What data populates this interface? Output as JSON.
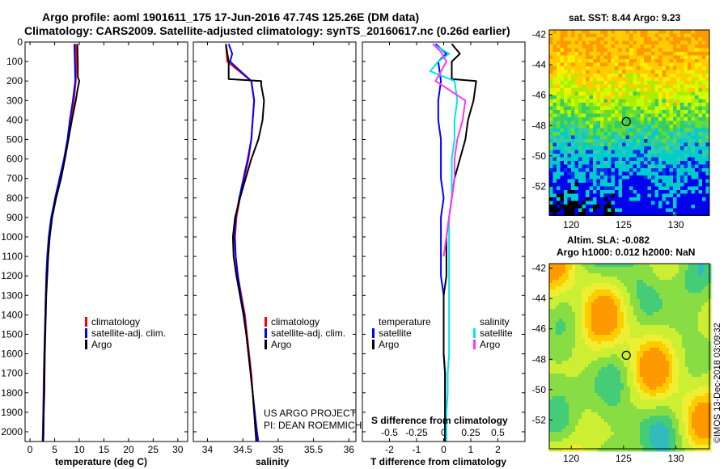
{
  "header": {
    "line1": "Argo profile: aoml 1901611_175 17-Jun-2016 47.74S 125.26E (DM data)",
    "line2": "Climatology: CARS2009. Satellite-adjusted climatology: synTS_20160617.nc (0.26d earlier)"
  },
  "colors": {
    "climatology": "#ff0000",
    "satellite": "#0000ff",
    "argo": "#000000",
    "satellite_salinity": "#00e5e5",
    "argo_salinity": "#ff33ff"
  },
  "depth_ticks": [
    "0",
    "100",
    "200",
    "300",
    "400",
    "500",
    "600",
    "700",
    "800",
    "900",
    "1000",
    "1100",
    "1200",
    "1300",
    "1400",
    "1500",
    "1600",
    "1700",
    "1800",
    "1900",
    "2000"
  ],
  "chart_data": [
    {
      "type": "line",
      "id": "temperature",
      "xlabel": "temperature (deg C)",
      "xlim": [
        -1,
        32
      ],
      "ylim": [
        2050,
        0
      ],
      "x_ticks": [
        "0",
        "5",
        "10",
        "15",
        "20",
        "25",
        "30"
      ],
      "legend": [
        "climatology",
        "satellite-adj. clim.",
        "Argo"
      ],
      "series": [
        {
          "name": "climatology",
          "color": "#ff0000",
          "depth": [
            10,
            100,
            200,
            300,
            400,
            500,
            600,
            700,
            800,
            900,
            1000,
            1100,
            1200,
            1300,
            1400,
            1500,
            1600,
            1700,
            1800,
            1900,
            2000,
            2050
          ],
          "values": [
            9.3,
            9.4,
            9.3,
            8.9,
            8.3,
            7.7,
            7.0,
            6.1,
            5.1,
            4.4,
            3.9,
            3.6,
            3.4,
            3.2,
            3.1,
            3.0,
            2.9,
            2.8,
            2.75,
            2.7,
            2.6,
            2.55
          ]
        },
        {
          "name": "satellite-adj. clim.",
          "color": "#0000ff",
          "depth": [
            10,
            100,
            200,
            300,
            400,
            500,
            600,
            700,
            800,
            900,
            1000,
            1100,
            1200,
            1300,
            1400,
            1500,
            1600,
            1700,
            1800,
            1900,
            2000,
            2050
          ],
          "values": [
            9.0,
            9.1,
            9.2,
            8.7,
            8.1,
            7.6,
            6.9,
            6.0,
            5.1,
            4.3,
            3.8,
            3.5,
            3.3,
            3.2,
            3.1,
            3.0,
            2.9,
            2.85,
            2.8,
            2.7,
            2.65,
            2.6
          ]
        },
        {
          "name": "Argo",
          "color": "#000000",
          "depth": [
            10,
            100,
            180,
            200,
            250,
            300,
            400,
            500,
            600,
            700,
            800,
            900,
            1000,
            1100,
            1200,
            1300,
            1400,
            1500,
            1600,
            1700,
            1800,
            1900,
            2000,
            2050
          ],
          "values": [
            9.6,
            9.7,
            9.7,
            10.0,
            9.6,
            9.3,
            8.5,
            7.8,
            7.1,
            6.3,
            5.3,
            4.5,
            4.0,
            3.7,
            3.5,
            3.3,
            3.2,
            3.1,
            3.0,
            2.95,
            2.9,
            2.8,
            2.75,
            2.7
          ]
        }
      ]
    },
    {
      "type": "line",
      "id": "salinity",
      "xlabel": "salinity",
      "xlim": [
        33.8,
        36.1
      ],
      "ylim": [
        2050,
        0
      ],
      "x_ticks": [
        "34",
        "34.5",
        "35",
        "35.5",
        "36"
      ],
      "legend": [
        "climatology",
        "satellite-adj. clim.",
        "Argo"
      ],
      "series": [
        {
          "name": "climatology",
          "color": "#ff0000",
          "depth": [
            10,
            100,
            200,
            300,
            400,
            500,
            600,
            700,
            800,
            900,
            1000,
            1100,
            1200,
            1300,
            1400,
            1500,
            1600,
            1700,
            1800,
            1900,
            2000,
            2050
          ],
          "values": [
            34.26,
            34.28,
            34.62,
            34.66,
            34.64,
            34.62,
            34.58,
            34.52,
            34.46,
            34.41,
            34.39,
            34.4,
            34.43,
            34.48,
            34.53,
            34.56,
            34.59,
            34.62,
            34.64,
            34.66,
            34.69,
            34.7
          ]
        },
        {
          "name": "satellite-adj. clim.",
          "color": "#0000ff",
          "depth": [
            10,
            60,
            100,
            200,
            300,
            400,
            500,
            600,
            700,
            800,
            900,
            1000,
            1100,
            1200,
            1300,
            1400,
            1500,
            1600,
            1700,
            1800,
            1900,
            2000,
            2050
          ],
          "values": [
            34.3,
            34.35,
            34.32,
            34.62,
            34.66,
            34.64,
            34.62,
            34.57,
            34.51,
            34.45,
            34.4,
            34.38,
            34.4,
            34.43,
            34.47,
            34.52,
            34.55,
            34.58,
            34.61,
            34.64,
            34.67,
            34.7,
            34.72
          ]
        },
        {
          "name": "Argo",
          "color": "#000000",
          "depth": [
            10,
            100,
            190,
            200,
            220,
            300,
            400,
            500,
            600,
            700,
            800,
            900,
            1000,
            1100,
            1200,
            1300,
            1400,
            1500,
            1600,
            1700,
            1800,
            1900,
            2000,
            2050
          ],
          "values": [
            34.26,
            34.3,
            34.3,
            34.76,
            34.76,
            34.8,
            34.78,
            34.72,
            34.62,
            34.54,
            34.46,
            34.39,
            34.36,
            34.37,
            34.41,
            34.46,
            34.51,
            34.55,
            34.58,
            34.61,
            34.64,
            34.66,
            34.68,
            34.69
          ]
        }
      ]
    },
    {
      "type": "line",
      "id": "difference",
      "xlabel": "T difference from climatology",
      "xlabel_top": "S difference from climatology",
      "xlim": [
        -3,
        3
      ],
      "ylim": [
        2050,
        0
      ],
      "x_ticks": [
        "-2",
        "-1",
        "0",
        "1",
        "2"
      ],
      "x_ticks_top": [
        "-0.5",
        "-0.25",
        "0",
        "0.25",
        "0.5"
      ],
      "legend_left_title": "temperature",
      "legend_right_title": "salinity",
      "legend_left": [
        "satellite",
        "Argo"
      ],
      "legend_right": [
        "satellite",
        "Argo"
      ],
      "series": [
        {
          "name": "satellite",
          "color": "#0000ff",
          "depth": [
            10,
            60,
            100,
            200,
            300,
            400,
            500,
            600,
            700,
            800,
            900,
            1000,
            1100,
            1200,
            1300,
            1400,
            1500,
            1600,
            1700,
            1800,
            1900,
            2000,
            2050
          ],
          "values": [
            -0.3,
            0.1,
            -0.2,
            -0.1,
            -0.2,
            -0.2,
            -0.1,
            -0.1,
            -0.1,
            0.0,
            -0.1,
            -0.1,
            -0.1,
            -0.1,
            0.0,
            0.0,
            0.0,
            0.0,
            0.05,
            0.05,
            0.05,
            0.05,
            0.05
          ]
        },
        {
          "name": "Argo",
          "color": "#000000",
          "depth": [
            10,
            60,
            100,
            190,
            200,
            300,
            400,
            500,
            600,
            700,
            800,
            900,
            1000,
            1100,
            1200,
            1300,
            1400,
            1500,
            1600,
            1700,
            1800,
            1900,
            2000,
            2050
          ],
          "values": [
            0.3,
            0.6,
            0.3,
            0.3,
            1.2,
            1.1,
            0.9,
            0.8,
            0.6,
            0.4,
            0.3,
            0.2,
            0.1,
            0.1,
            0.1,
            0.0,
            0.0,
            0.0,
            0.0,
            0.05,
            0.05,
            0.05,
            0.05,
            0.05
          ]
        },
        {
          "name": "satellite",
          "color": "#00e5e5",
          "depth": [
            10,
            60,
            100,
            150,
            200,
            300,
            400,
            500,
            600,
            700,
            800,
            900,
            1000,
            1100,
            1200,
            1300,
            1400,
            1500,
            1600,
            1700,
            1800,
            1900,
            2000,
            2050
          ],
          "values": [
            -0.4,
            0.2,
            -0.2,
            -0.5,
            0.4,
            0.5,
            0.4,
            0.4,
            0.3,
            0.3,
            0.3,
            0.2,
            0.2,
            0.2,
            0.2,
            0.2,
            0.2,
            0.2,
            0.2,
            0.15,
            0.15,
            0.1,
            0.1,
            0.1
          ]
        },
        {
          "name": "Argo",
          "color": "#ff33ff",
          "depth": [
            10,
            50,
            100,
            200,
            300,
            400,
            500,
            600,
            700,
            800,
            900,
            1000,
            1100
          ],
          "values": [
            -0.4,
            -0.1,
            0.1,
            -0.3,
            0.8,
            0.7,
            0.5,
            0.4,
            0.4,
            0.3,
            0.2,
            0.1,
            0.0
          ]
        }
      ]
    }
  ],
  "sst_map": {
    "title": "sat. SST: 8.44 Argo: 9.23",
    "lon_ticks": [
      "120",
      "125",
      "130"
    ],
    "lat_ticks": [
      "-42",
      "-44",
      "-46",
      "-48",
      "-50",
      "-52"
    ],
    "lon_range": [
      117.9,
      133.2
    ],
    "lat_range": [
      -53.9,
      -41.7
    ],
    "marker": {
      "lon": 125.26,
      "lat": -47.74
    }
  },
  "sla_map": {
    "title_line1": "Altim. SLA: -0.082",
    "title_line2": "Argo h1000: 0.012 h2000: NaN",
    "lon_ticks": [
      "120",
      "125",
      "130"
    ],
    "lat_ticks": [
      "-42",
      "-44",
      "-46",
      "-48",
      "-50",
      "-52"
    ],
    "lon_range": [
      117.9,
      133.2
    ],
    "lat_range": [
      -53.9,
      -41.7
    ],
    "marker": {
      "lon": 125.26,
      "lat": -47.74
    }
  },
  "credit": {
    "line1": "US ARGO PROJECT",
    "line2": "PI: DEAN ROEMMICH",
    "watermark": "©IMOS 13-Dec-2018 03:09:32"
  }
}
